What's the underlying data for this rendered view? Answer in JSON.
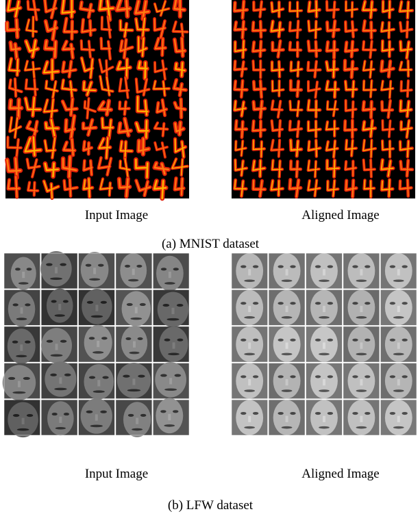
{
  "figures": [
    {
      "input_label": "Input Image",
      "aligned_label": "Aligned Image",
      "caption": "(a) MNIST dataset"
    },
    {
      "input_label": "Input Image",
      "aligned_label": "Aligned Image",
      "caption": "(b) LFW dataset"
    }
  ]
}
